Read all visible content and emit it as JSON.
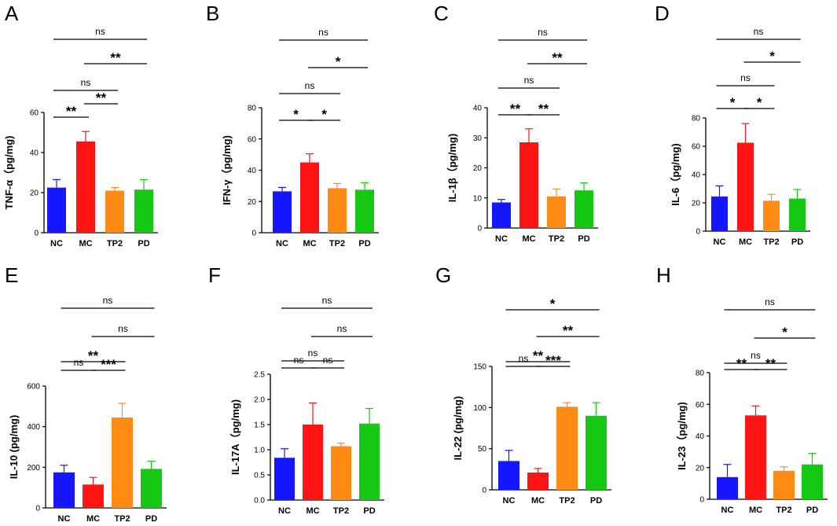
{
  "colors": {
    "NC": "#1515ff",
    "MC": "#ff1414",
    "TP2": "#ff8a14",
    "PD": "#14c814",
    "axis": "#000000"
  },
  "chart_data": [
    {
      "type": "bar",
      "panel": "A",
      "ylabel": "TNF-α（pg/mg)",
      "categories": [
        "NC",
        "MC",
        "TP2",
        "PD"
      ],
      "values": [
        22.5,
        45.5,
        21,
        21.5
      ],
      "errors": [
        4,
        5,
        1.5,
        5
      ],
      "ylim": [
        0,
        60
      ],
      "yticks": [
        "0",
        "20",
        "40",
        "60"
      ],
      "comparisons": [
        {
          "from": 0,
          "to": 1,
          "label": "**"
        },
        {
          "from": 1,
          "to": 2,
          "label": "**"
        },
        {
          "from": 0,
          "to": 2,
          "label": "ns"
        },
        {
          "from": 1,
          "to": 3,
          "label": "**"
        },
        {
          "from": 0,
          "to": 3,
          "label": "ns"
        }
      ]
    },
    {
      "type": "bar",
      "panel": "B",
      "ylabel": "IFN-γ（pg/mg)",
      "categories": [
        "NC",
        "MC",
        "TP2",
        "PD"
      ],
      "values": [
        26.5,
        45,
        28.5,
        27.5
      ],
      "errors": [
        2.5,
        5.5,
        3,
        4.5
      ],
      "ylim": [
        0,
        80
      ],
      "yticks": [
        "0",
        "20",
        "40",
        "60",
        "80"
      ],
      "comparisons": [
        {
          "from": 0,
          "to": 1,
          "label": "*"
        },
        {
          "from": 1,
          "to": 2,
          "label": "*"
        },
        {
          "from": 0,
          "to": 2,
          "label": "ns"
        },
        {
          "from": 1,
          "to": 3,
          "label": "*"
        },
        {
          "from": 0,
          "to": 3,
          "label": "ns"
        }
      ]
    },
    {
      "type": "bar",
      "panel": "C",
      "ylabel": "IL-1β（pg/mg)",
      "categories": [
        "NC",
        "MC",
        "TP2",
        "PD"
      ],
      "values": [
        8.5,
        28.5,
        10.5,
        12.5
      ],
      "errors": [
        1,
        4.5,
        2.5,
        2.5
      ],
      "ylim": [
        0,
        40
      ],
      "yticks": [
        "0",
        "10",
        "20",
        "30",
        "40"
      ],
      "comparisons": [
        {
          "from": 0,
          "to": 1,
          "label": "**"
        },
        {
          "from": 1,
          "to": 2,
          "label": "**"
        },
        {
          "from": 0,
          "to": 2,
          "label": "ns"
        },
        {
          "from": 1,
          "to": 3,
          "label": "**"
        },
        {
          "from": 0,
          "to": 3,
          "label": "ns"
        }
      ]
    },
    {
      "type": "bar",
      "panel": "D",
      "ylabel": "IL-6（pg/mg)",
      "categories": [
        "NC",
        "MC",
        "TP2",
        "PD"
      ],
      "values": [
        24.5,
        62.5,
        21.5,
        23
      ],
      "errors": [
        7.5,
        13.5,
        4.5,
        6.5
      ],
      "ylim": [
        0,
        80
      ],
      "yticks": [
        "0",
        "20",
        "40",
        "60",
        "80"
      ],
      "comparisons": [
        {
          "from": 0,
          "to": 1,
          "label": "*"
        },
        {
          "from": 1,
          "to": 2,
          "label": "*"
        },
        {
          "from": 0,
          "to": 2,
          "label": "ns"
        },
        {
          "from": 1,
          "to": 3,
          "label": "*"
        },
        {
          "from": 0,
          "to": 3,
          "label": "ns"
        }
      ]
    },
    {
      "type": "bar",
      "panel": "E",
      "ylabel": "IL-10 (pg/mg)",
      "categories": [
        "NC",
        "MC",
        "TP2",
        "PD"
      ],
      "values": [
        175,
        115,
        445,
        192
      ],
      "errors": [
        35,
        35,
        70,
        38
      ],
      "ylim": [
        0,
        600
      ],
      "yticks": [
        "0",
        "200",
        "400",
        "600"
      ],
      "comparisons": [
        {
          "from": 0,
          "to": 1,
          "label": "ns"
        },
        {
          "from": 1,
          "to": 2,
          "label": "***"
        },
        {
          "from": 0,
          "to": 2,
          "label": "**"
        },
        {
          "from": 1,
          "to": 3,
          "label": "ns"
        },
        {
          "from": 0,
          "to": 3,
          "label": "ns"
        }
      ]
    },
    {
      "type": "bar",
      "panel": "F",
      "ylabel": "IL-17A（pg/mg)",
      "categories": [
        "NC",
        "MC",
        "TP2",
        "PD"
      ],
      "values": [
        0.84,
        1.5,
        1.07,
        1.52
      ],
      "errors": [
        0.18,
        0.43,
        0.06,
        0.3
      ],
      "ylim": [
        0,
        2.5
      ],
      "yticks": [
        "0.0",
        "0.5",
        "1.0",
        "1.5",
        "2.0",
        "2.5"
      ],
      "comparisons": [
        {
          "from": 0,
          "to": 1,
          "label": "ns"
        },
        {
          "from": 1,
          "to": 2,
          "label": "ns"
        },
        {
          "from": 0,
          "to": 2,
          "label": "ns"
        },
        {
          "from": 1,
          "to": 3,
          "label": "ns"
        },
        {
          "from": 0,
          "to": 3,
          "label": "ns"
        }
      ]
    },
    {
      "type": "bar",
      "panel": "G",
      "ylabel": "IL-22 (pg/mg)",
      "categories": [
        "NC",
        "MC",
        "TP2",
        "PD"
      ],
      "values": [
        35,
        21,
        101,
        90
      ],
      "errors": [
        13,
        5,
        5,
        16
      ],
      "ylim": [
        0,
        150
      ],
      "yticks": [
        "0",
        "50",
        "100",
        "150"
      ],
      "comparisons": [
        {
          "from": 0,
          "to": 1,
          "label": "ns"
        },
        {
          "from": 1,
          "to": 2,
          "label": "***"
        },
        {
          "from": 0,
          "to": 2,
          "label": "**"
        },
        {
          "from": 1,
          "to": 3,
          "label": "**"
        },
        {
          "from": 0,
          "to": 3,
          "label": "*"
        }
      ]
    },
    {
      "type": "bar",
      "panel": "H",
      "ylabel": "IL-23（pg/mg)",
      "categories": [
        "NC",
        "MC",
        "TP2",
        "PD"
      ],
      "values": [
        14,
        53,
        18,
        22
      ],
      "errors": [
        8,
        6,
        2.5,
        7
      ],
      "ylim": [
        0,
        80
      ],
      "yticks": [
        "0",
        "20",
        "40",
        "60",
        "80"
      ],
      "comparisons": [
        {
          "from": 0,
          "to": 1,
          "label": "**"
        },
        {
          "from": 1,
          "to": 2,
          "label": "**"
        },
        {
          "from": 0,
          "to": 2,
          "label": "ns"
        },
        {
          "from": 1,
          "to": 3,
          "label": "*"
        },
        {
          "from": 0,
          "to": 3,
          "label": "ns"
        }
      ]
    }
  ]
}
